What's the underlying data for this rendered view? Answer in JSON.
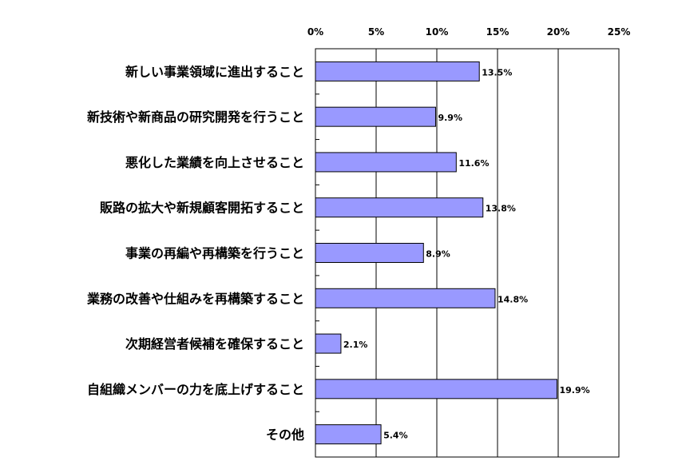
{
  "chart_data": {
    "type": "bar",
    "orientation": "horizontal",
    "categories": [
      "新しい事業領域に進出すること",
      "新技術や新商品の研究開発を行うこと",
      "悪化した業績を向上させること",
      "販路の拡大や新規顧客開拓すること",
      "事業の再編や再構築を行うこと",
      "業務の改善や仕組みを再構築すること",
      "次期経営者候補を確保すること",
      "自組織メンバーの力を底上げすること",
      "その他"
    ],
    "values": [
      13.5,
      9.9,
      11.6,
      13.8,
      8.9,
      14.8,
      2.1,
      19.9,
      5.4
    ],
    "data_labels": [
      "13.5%",
      "9.9%",
      "11.6%",
      "13.8%",
      "8.9%",
      "14.8%",
      "2.1%",
      "19.9%",
      "5.4%"
    ],
    "xlim": [
      0,
      25
    ],
    "x_ticks": [
      0,
      5,
      10,
      15,
      20,
      25
    ],
    "x_tick_labels": [
      "0%",
      "5%",
      "10%",
      "15%",
      "20%",
      "25%"
    ],
    "x_axis_position": "top",
    "grid": "vertical",
    "legend": "none",
    "bar_color": "#9999ff",
    "bar_edge_color": "#000000",
    "grid_color": "#000000"
  }
}
